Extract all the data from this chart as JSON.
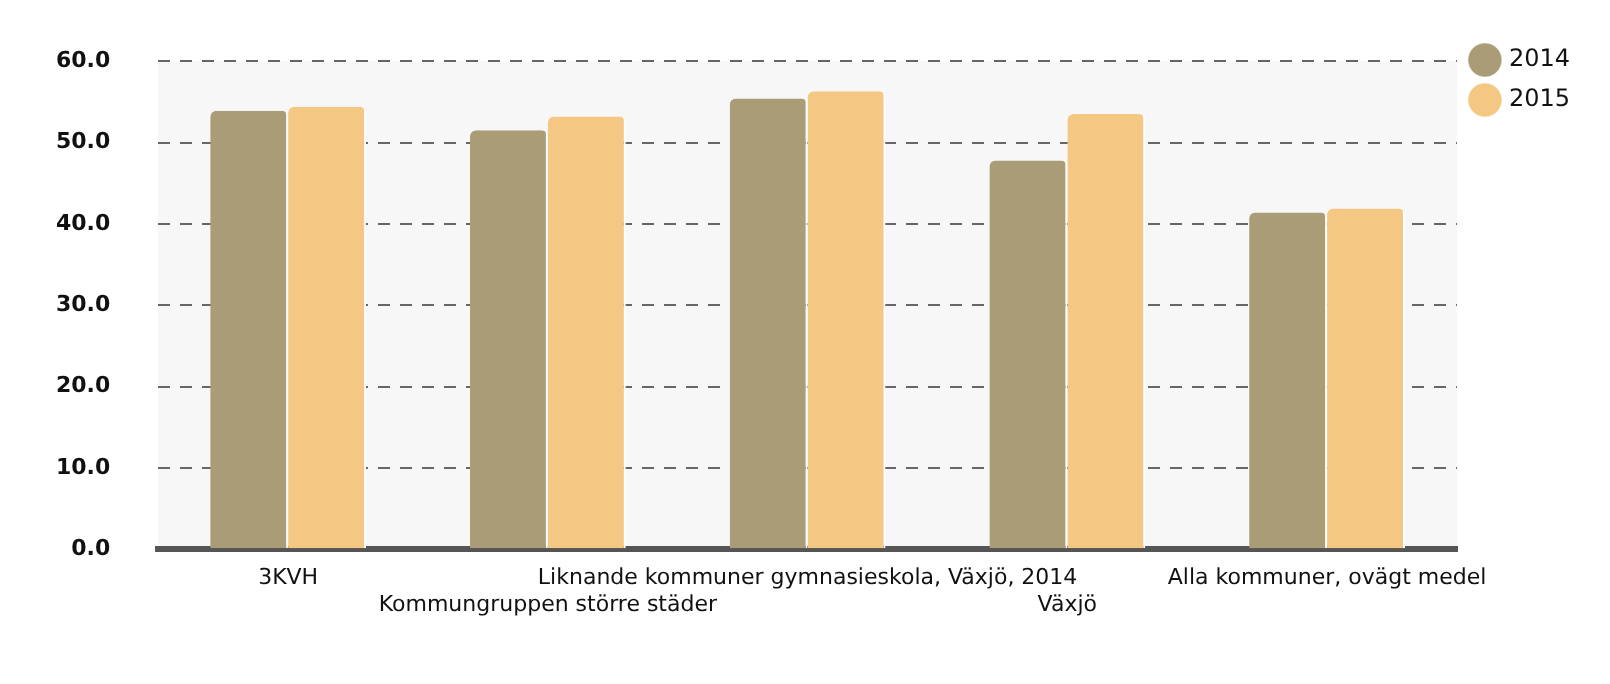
{
  "chart_data": {
    "type": "bar",
    "categories": [
      "3KVH",
      "Kommungruppen större städer",
      "Liknande kommuner gymnasieskola, Växjö, 2014",
      "Växjö",
      "Alla kommuner, ovägt medel"
    ],
    "series": [
      {
        "name": "2014",
        "color": "#aa9c77",
        "values": [
          53.9,
          51.5,
          55.4,
          47.8,
          41.4
        ]
      },
      {
        "name": "2015",
        "color": "#f4c883",
        "values": [
          54.4,
          53.2,
          56.3,
          53.5,
          41.9
        ]
      }
    ],
    "ylim": [
      0,
      60
    ],
    "yticks": [
      {
        "value": 0,
        "label": "0.0"
      },
      {
        "value": 10,
        "label": "10.0"
      },
      {
        "value": 20,
        "label": "20.0"
      },
      {
        "value": 30,
        "label": "30.0"
      },
      {
        "value": 40,
        "label": "40.0"
      },
      {
        "value": 50,
        "label": "50.0"
      },
      {
        "value": 60,
        "label": "60.0"
      }
    ],
    "grid": "y",
    "legend": "top right"
  }
}
